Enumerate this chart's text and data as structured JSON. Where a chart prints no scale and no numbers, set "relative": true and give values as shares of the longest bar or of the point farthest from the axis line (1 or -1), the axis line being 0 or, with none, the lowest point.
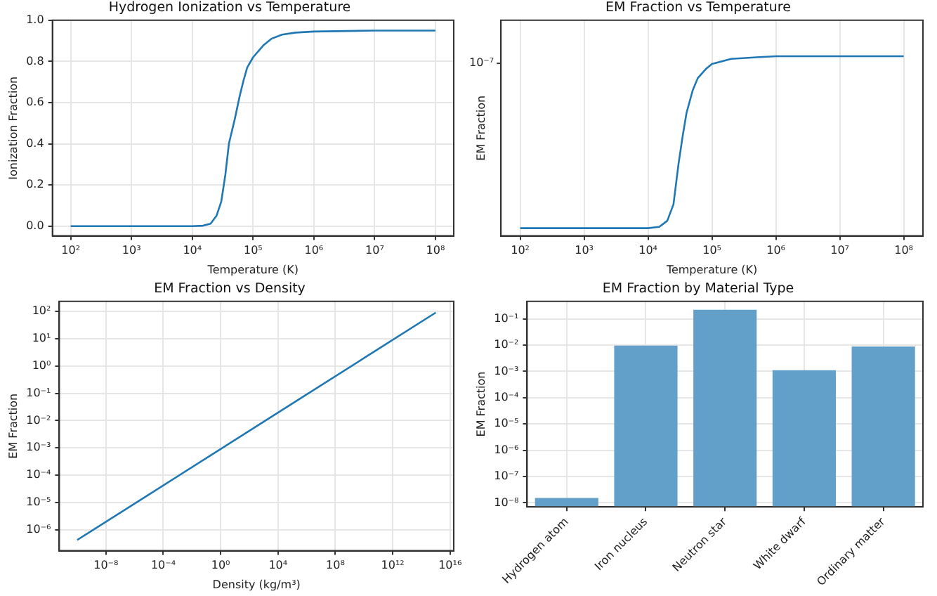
{
  "chart_data": [
    {
      "type": "line",
      "title": "Hydrogen Ionization vs Temperature",
      "xlabel": "Temperature (K)",
      "ylabel": "Ionization Fraction",
      "log": "x",
      "grid": true,
      "xlim": [
        50,
        200000000.0
      ],
      "ylim": [
        -0.0475,
        1.0
      ],
      "xticks": [
        {
          "value": 100,
          "label": "10²"
        },
        {
          "value": 1000,
          "label": "10³"
        },
        {
          "value": 10000,
          "label": "10⁴"
        },
        {
          "value": 100000,
          "label": "10⁵"
        },
        {
          "value": 1000000,
          "label": "10⁶"
        },
        {
          "value": 10000000,
          "label": "10⁷"
        },
        {
          "value": 100000000,
          "label": "10⁸"
        }
      ],
      "yticks": [
        {
          "value": 0,
          "label": "0.0"
        },
        {
          "value": 0.2,
          "label": "0.2"
        },
        {
          "value": 0.4,
          "label": "0.4"
        },
        {
          "value": 0.6,
          "label": "0.6"
        },
        {
          "value": 0.8,
          "label": "0.8"
        },
        {
          "value": 1.0,
          "label": "1.0"
        }
      ],
      "series": [
        {
          "color": "#1f77b4",
          "x": [
            100,
            1000,
            10000,
            15000,
            20000,
            25000,
            30000,
            35000,
            40000,
            50000,
            60000,
            70000,
            80000,
            100000,
            150000,
            200000,
            300000,
            500000,
            1000000,
            10000000,
            100000000
          ],
          "values": [
            0,
            0,
            0,
            0.002,
            0.012,
            0.05,
            0.12,
            0.25,
            0.4,
            0.52,
            0.63,
            0.71,
            0.77,
            0.82,
            0.88,
            0.91,
            0.93,
            0.94,
            0.945,
            0.95,
            0.95
          ]
        }
      ]
    },
    {
      "type": "line",
      "title": "EM Fraction vs Temperature",
      "xlabel": "Temperature (K)",
      "ylabel": "EM Fraction",
      "log": "x",
      "grid": true,
      "xlim": [
        50,
        200000000.0
      ],
      "relative": true,
      "annotations": [
        "10⁻⁷"
      ],
      "xticks": [
        {
          "value": 100,
          "label": "10²"
        },
        {
          "value": 1000,
          "label": "10³"
        },
        {
          "value": 10000,
          "label": "10⁴"
        },
        {
          "value": 100000,
          "label": "10⁵"
        },
        {
          "value": 1000000,
          "label": "10⁶"
        },
        {
          "value": 10000000,
          "label": "10⁷"
        },
        {
          "value": 100000000,
          "label": "10⁸"
        }
      ],
      "series": [
        {
          "color": "#1f77b4",
          "x": [
            100,
            1000,
            10000,
            15000,
            20000,
            25000,
            30000,
            35000,
            40000,
            50000,
            60000,
            80000,
            100000,
            200000,
            500000,
            1000000,
            100000000
          ],
          "values": [
            0.043,
            0.043,
            0.043,
            0.05,
            0.084,
            0.175,
            0.401,
            0.56,
            0.684,
            0.81,
            0.878,
            0.928,
            0.957,
            0.985,
            0.994,
            1.0,
            1.0
          ]
        }
      ]
    },
    {
      "type": "line",
      "title": "EM Fraction vs Density",
      "xlabel": "Density (kg/m³)",
      "ylabel": "EM Fraction",
      "log": "xy",
      "grid": true,
      "xlim": [
        5.6e-12,
        1.8e+16
      ],
      "ylim": [
        1.7e-07,
        234
      ],
      "xticks": [
        {
          "value": 1e-08,
          "label": "10⁻⁸"
        },
        {
          "value": 0.0001,
          "label": "10⁻⁴"
        },
        {
          "value": 1,
          "label": "10⁰"
        },
        {
          "value": 10000.0,
          "label": "10⁴"
        },
        {
          "value": 100000000.0,
          "label": "10⁸"
        },
        {
          "value": 1000000000000.0,
          "label": "10¹²"
        },
        {
          "value": 1e+16,
          "label": "10¹⁶"
        }
      ],
      "yticks": [
        {
          "value": 1e-06,
          "label": "10⁻⁶"
        },
        {
          "value": 1e-05,
          "label": "10⁻⁵"
        },
        {
          "value": 0.0001,
          "label": "10⁻⁴"
        },
        {
          "value": 0.001,
          "label": "10⁻³"
        },
        {
          "value": 0.01,
          "label": "10⁻²"
        },
        {
          "value": 0.1,
          "label": "10⁻¹"
        },
        {
          "value": 1,
          "label": "10⁰"
        },
        {
          "value": 10,
          "label": "10¹"
        },
        {
          "value": 100,
          "label": "10²"
        }
      ],
      "series": [
        {
          "color": "#1f77b4",
          "x": [
            1e-10,
            1e-05,
            1,
            100000.0,
            10000000000.0,
            1000000000000000.0
          ],
          "values": [
            4.22e-07,
            1.96e-05,
            0.00091,
            0.0422,
            1.96,
            91
          ]
        }
      ]
    },
    {
      "type": "bar",
      "title": "EM Fraction by Material Type",
      "ylabel": "EM Fraction",
      "log": "y",
      "grid": true,
      "categories": [
        "Hydrogen atom",
        "Iron nucleus",
        "Neutron star",
        "White dwarf",
        "Ordinary matter"
      ],
      "ylim": [
        7.3e-09,
        0.46
      ],
      "yticks": [
        {
          "value": 1e-08,
          "label": "10⁻⁸"
        },
        {
          "value": 1e-07,
          "label": "10⁻⁷"
        },
        {
          "value": 1e-06,
          "label": "10⁻⁶"
        },
        {
          "value": 1e-05,
          "label": "10⁻⁵"
        },
        {
          "value": 0.0001,
          "label": "10⁻⁴"
        },
        {
          "value": 0.001,
          "label": "10⁻³"
        },
        {
          "value": 0.01,
          "label": "10⁻²"
        },
        {
          "value": 0.1,
          "label": "10⁻¹"
        }
      ],
      "series": [
        {
          "color": "#62a0ca",
          "values": [
            1.54e-08,
            0.0095,
            0.22,
            0.0011,
            0.0089
          ]
        }
      ]
    }
  ]
}
